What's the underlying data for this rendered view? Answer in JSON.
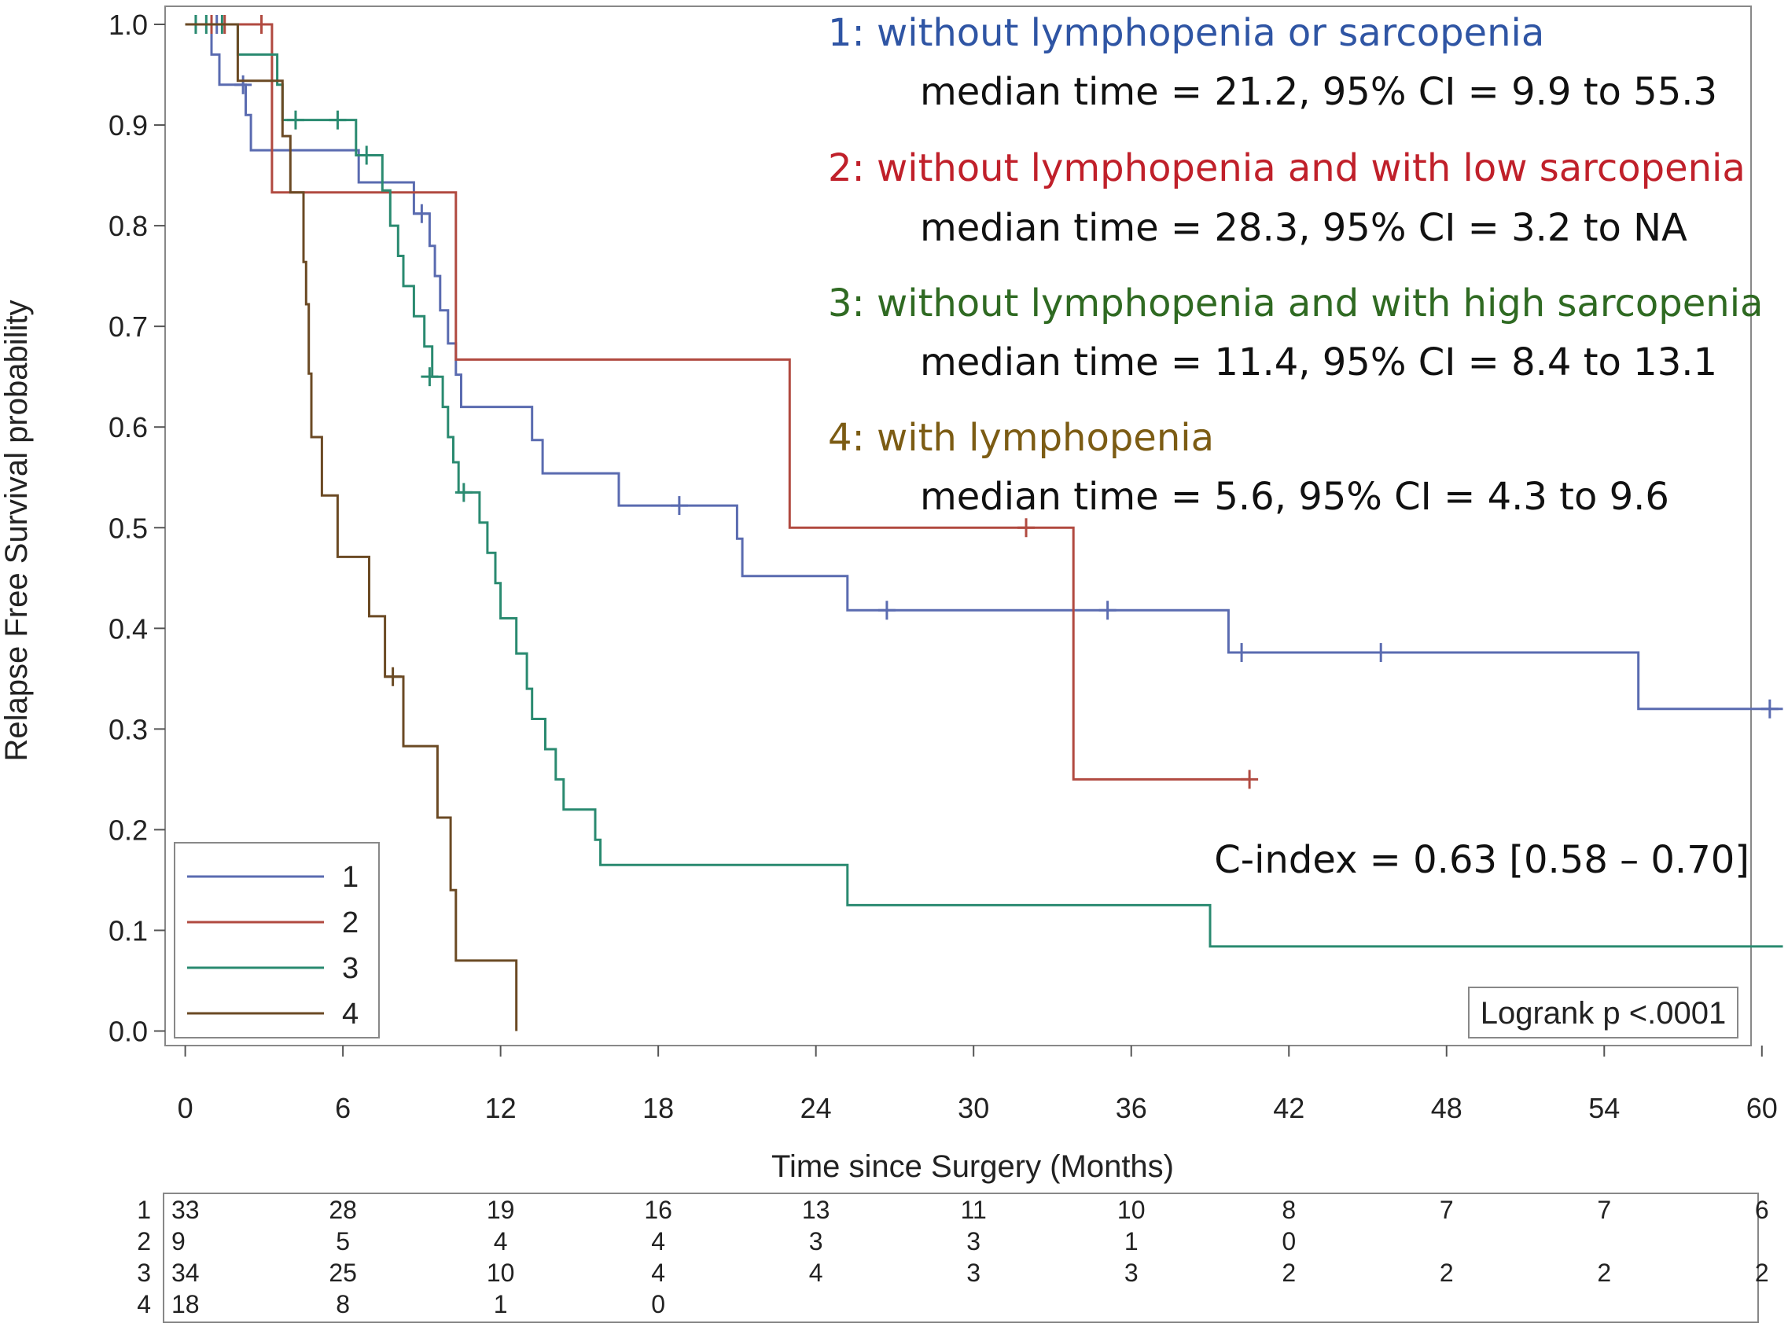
{
  "chart_data": {
    "type": "line",
    "subtype": "kaplan-meier step",
    "xlabel": "Time since Surgery (Months)",
    "ylabel": "Relapse Free Survival probability",
    "xlim": [
      -0.5,
      60.8
    ],
    "ylim": [
      -0.02,
      1.02
    ],
    "xticks": [
      0,
      6,
      12,
      18,
      24,
      30,
      36,
      42,
      48,
      54,
      60
    ],
    "yticks": [
      "0.0",
      "0.1",
      "0.2",
      "0.3",
      "0.4",
      "0.5",
      "0.6",
      "0.7",
      "0.8",
      "0.9",
      "1.0"
    ],
    "series": [
      {
        "name": "1",
        "color": "#5a6bb0",
        "label": "1: without lymphopenia or sarcopenia",
        "label_color": "#2f55a4",
        "median_text": "median time = 21.2, 95% CI = 9.9 to 55.3",
        "points": [
          [
            0,
            1.0
          ],
          [
            1.0,
            0.97
          ],
          [
            1.3,
            0.94
          ],
          [
            2.3,
            0.91
          ],
          [
            2.5,
            0.875
          ],
          [
            5.7,
            0.875
          ],
          [
            6.6,
            0.843
          ],
          [
            8.7,
            0.812
          ],
          [
            9.3,
            0.78
          ],
          [
            9.5,
            0.75
          ],
          [
            9.7,
            0.716
          ],
          [
            10.0,
            0.683
          ],
          [
            10.3,
            0.652
          ],
          [
            10.5,
            0.62
          ],
          [
            13.2,
            0.587
          ],
          [
            13.6,
            0.554
          ],
          [
            16.5,
            0.522
          ],
          [
            21.0,
            0.489
          ],
          [
            21.2,
            0.452
          ],
          [
            25.2,
            0.418
          ],
          [
            39.7,
            0.376
          ],
          [
            55.3,
            0.32
          ],
          [
            60.8,
            0.32
          ]
        ],
        "censored": [
          [
            0.4,
            1.0
          ],
          [
            1.2,
            1.0
          ],
          [
            2.2,
            0.94
          ],
          [
            9.0,
            0.812
          ],
          [
            18.8,
            0.522
          ],
          [
            26.7,
            0.418
          ],
          [
            35.1,
            0.418
          ],
          [
            40.2,
            0.376
          ],
          [
            45.5,
            0.376
          ],
          [
            60.3,
            0.32
          ]
        ]
      },
      {
        "name": "2",
        "color": "#b14a40",
        "label": "2: without lymphopenia and with low sarcopenia",
        "label_color": "#c0202a",
        "median_text": "median time = 28.3, 95% CI = 3.2 to NA",
        "points": [
          [
            0,
            1.0
          ],
          [
            3.3,
            0.833
          ],
          [
            10.3,
            0.667
          ],
          [
            23.0,
            0.5
          ],
          [
            33.8,
            0.25
          ],
          [
            40.5,
            0.25
          ]
        ],
        "censored": [
          [
            1.0,
            1.0
          ],
          [
            1.5,
            1.0
          ],
          [
            2.9,
            1.0
          ],
          [
            32.0,
            0.5
          ],
          [
            40.5,
            0.25
          ]
        ]
      },
      {
        "name": "3",
        "color": "#2a8a70",
        "label": "3: without lymphopenia and with high sarcopenia",
        "label_color": "#2f6a22",
        "median_text": "median time = 11.4, 95% CI = 8.4 to 13.1",
        "points": [
          [
            0,
            1.0
          ],
          [
            2.0,
            0.97
          ],
          [
            3.5,
            0.94
          ],
          [
            3.7,
            0.905
          ],
          [
            6.5,
            0.87
          ],
          [
            7.5,
            0.835
          ],
          [
            7.8,
            0.8
          ],
          [
            8.1,
            0.77
          ],
          [
            8.3,
            0.74
          ],
          [
            8.7,
            0.71
          ],
          [
            9.1,
            0.68
          ],
          [
            9.4,
            0.65
          ],
          [
            9.8,
            0.62
          ],
          [
            10.0,
            0.59
          ],
          [
            10.2,
            0.565
          ],
          [
            10.4,
            0.535
          ],
          [
            11.2,
            0.505
          ],
          [
            11.5,
            0.475
          ],
          [
            11.8,
            0.445
          ],
          [
            12.0,
            0.41
          ],
          [
            12.6,
            0.375
          ],
          [
            13.0,
            0.34
          ],
          [
            13.2,
            0.31
          ],
          [
            13.7,
            0.28
          ],
          [
            14.1,
            0.25
          ],
          [
            14.4,
            0.22
          ],
          [
            15.6,
            0.19
          ],
          [
            15.8,
            0.165
          ],
          [
            25.2,
            0.125
          ],
          [
            39.0,
            0.084
          ],
          [
            60.8,
            0.084
          ]
        ],
        "censored": [
          [
            0.4,
            1.0
          ],
          [
            0.8,
            1.0
          ],
          [
            1.4,
            1.0
          ],
          [
            4.2,
            0.905
          ],
          [
            5.8,
            0.905
          ],
          [
            6.9,
            0.87
          ],
          [
            9.3,
            0.65
          ],
          [
            10.6,
            0.535
          ]
        ]
      },
      {
        "name": "4",
        "color": "#6b4a24",
        "label": "4: with lymphopenia",
        "label_color": "#7c5c14",
        "median_text": "median time = 5.6, 95% CI = 4.3 to 9.6",
        "points": [
          [
            0,
            1.0
          ],
          [
            2.0,
            0.944
          ],
          [
            3.7,
            0.889
          ],
          [
            4.0,
            0.833
          ],
          [
            4.5,
            0.764
          ],
          [
            4.6,
            0.722
          ],
          [
            4.7,
            0.653
          ],
          [
            4.8,
            0.59
          ],
          [
            5.2,
            0.532
          ],
          [
            5.8,
            0.471
          ],
          [
            7.0,
            0.412
          ],
          [
            7.6,
            0.352
          ],
          [
            8.3,
            0.283
          ],
          [
            9.6,
            0.212
          ],
          [
            10.1,
            0.14
          ],
          [
            10.3,
            0.07
          ],
          [
            12.6,
            0.0
          ]
        ],
        "censored": [
          [
            7.9,
            0.352
          ]
        ]
      }
    ],
    "legend": {
      "placement": "bottom-left",
      "entries": [
        "1",
        "2",
        "3",
        "4"
      ]
    },
    "annotations": {
      "cindex": "C-index = 0.63 [0.58 – 0.70]",
      "logrank": "Logrank p <.0001"
    },
    "at_risk": {
      "times": [
        0,
        6,
        12,
        18,
        24,
        30,
        36,
        42,
        48,
        54,
        60
      ],
      "rows": [
        {
          "label": "1",
          "values": [
            "33",
            "28",
            "19",
            "16",
            "13",
            "11",
            "10",
            "8",
            "7",
            "7",
            "6"
          ]
        },
        {
          "label": "2",
          "values": [
            "9",
            "5",
            "4",
            "4",
            "3",
            "3",
            "1",
            "0",
            null,
            null,
            null
          ]
        },
        {
          "label": "3",
          "values": [
            "34",
            "25",
            "10",
            "4",
            "4",
            "3",
            "3",
            "2",
            "2",
            "2",
            "2"
          ]
        },
        {
          "label": "4",
          "values": [
            "18",
            "8",
            "1",
            "0",
            null,
            null,
            null,
            null,
            null,
            null,
            null
          ]
        }
      ]
    }
  }
}
